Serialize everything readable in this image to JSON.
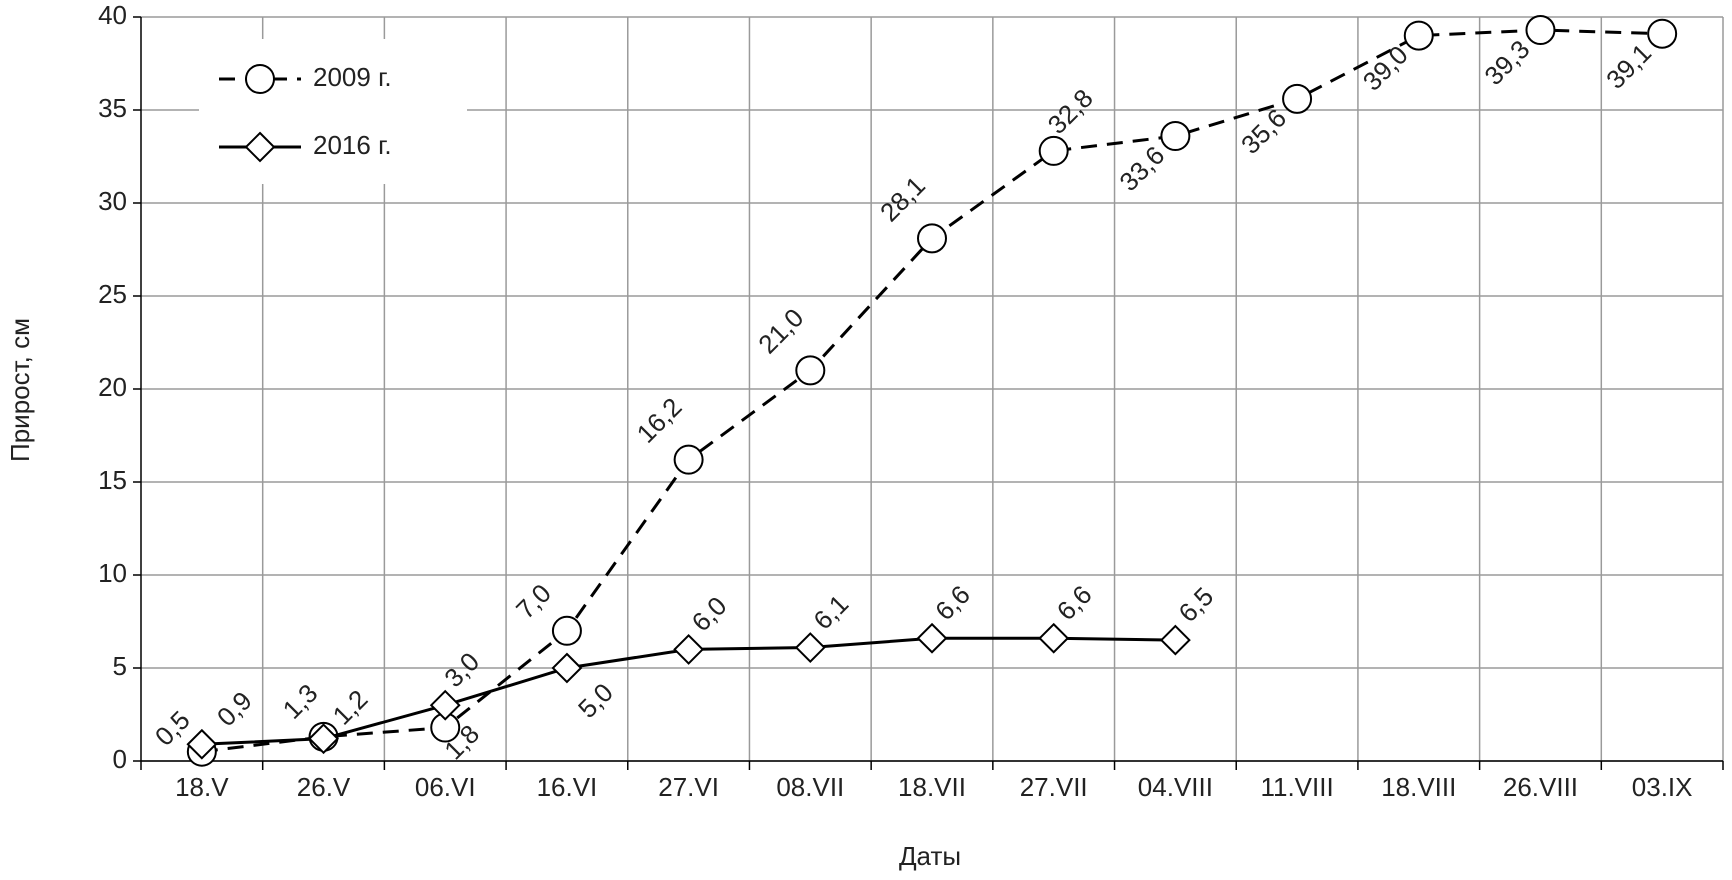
{
  "chart_data": {
    "type": "line",
    "x_label": "Даты",
    "y_label": "Прирост,  см",
    "categories": [
      "18.V",
      "26.V",
      "06.VI",
      "16.VI",
      "27.VI",
      "08.VII",
      "18.VII",
      "27.VII",
      "04.VIII",
      "11.VIII",
      "18.VIII",
      "26.VIII",
      "03.IX"
    ],
    "series": [
      {
        "name": "2009 г.",
        "color": "#000000",
        "line_style": "dashed",
        "marker": "circle",
        "values": [
          0.5,
          1.3,
          1.8,
          7.0,
          16.2,
          21.0,
          28.1,
          32.8,
          33.6,
          35.6,
          39.0,
          39.3,
          39.1
        ],
        "value_labels": [
          "0,5",
          "1,3",
          "1,8",
          "7,0",
          "16,2",
          "21,0",
          "28,1",
          "32,8",
          "33,6",
          "35,6",
          "39,0",
          "39,3",
          "39,1"
        ]
      },
      {
        "name": "2016 г.",
        "color": "#000000",
        "line_style": "solid",
        "marker": "diamond",
        "values": [
          0.9,
          1.2,
          3.0,
          5.0,
          6.0,
          6.1,
          6.6,
          6.6,
          6.5,
          null,
          null,
          null,
          null
        ],
        "value_labels": [
          "0,9",
          "1,2",
          "3,0",
          "5,0",
          "6,0",
          "6,1",
          "6,6",
          "6,6",
          "6,5",
          null,
          null,
          null,
          null
        ]
      }
    ],
    "ylim": [
      0,
      40
    ],
    "yticks": [
      0,
      5,
      10,
      15,
      20,
      25,
      30,
      35,
      40
    ],
    "grid": true,
    "legend": "upper left"
  }
}
